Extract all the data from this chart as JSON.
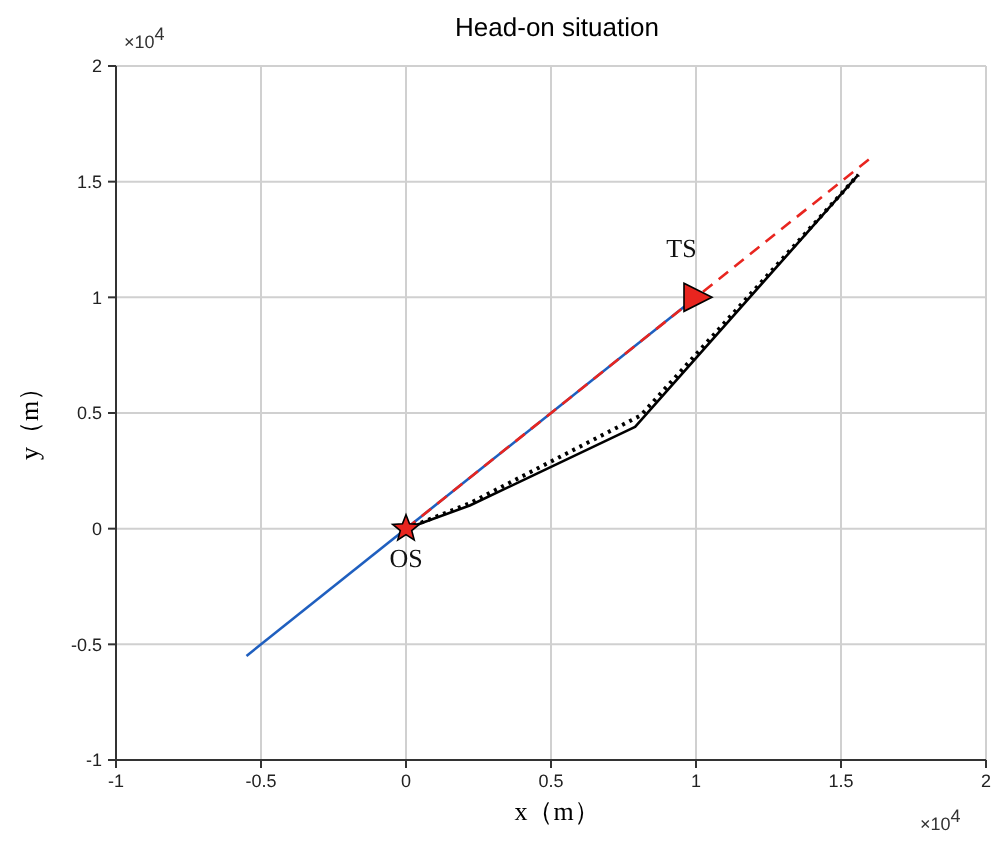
{
  "chart_data": {
    "type": "line",
    "title": "Head-on situation",
    "xlabel": "x（m）",
    "ylabel": "y（m）",
    "xlim": [
      -1,
      2
    ],
    "ylim": [
      -1,
      2
    ],
    "xticks": [
      -1,
      -0.5,
      0,
      0.5,
      1,
      1.5,
      2
    ],
    "yticks": [
      -1,
      -0.5,
      0,
      0.5,
      1,
      1.5,
      2
    ],
    "grid": true,
    "legend": false,
    "series": [
      {
        "color": "#1f5fbf",
        "line_style": "solid",
        "x": [
          -0.55,
          1
        ],
        "values": [
          -0.55,
          1
        ]
      },
      {
        "color": "#e8251f",
        "line_style": "dashed",
        "x": [
          0,
          1.6
        ],
        "values": [
          0,
          1.6
        ]
      },
      {
        "color": "#000000",
        "line_style": "solid",
        "x": [
          0,
          0.22,
          0.79,
          1.56
        ],
        "values": [
          0,
          0.1,
          0.44,
          1.53
        ]
      },
      {
        "color": "#000000",
        "line_style": "dotted",
        "x": [
          0,
          0.22,
          0.81,
          1.56
        ],
        "values": [
          0,
          0.11,
          0.49,
          1.53
        ]
      },
      {
        "type": "scatter",
        "color": "#e8251f",
        "marker": "star",
        "x": [
          0
        ],
        "values": [
          0
        ]
      },
      {
        "type": "scatter",
        "color": "#e8251f",
        "marker": "triangle",
        "x": [
          1
        ],
        "values": [
          1
        ]
      }
    ],
    "annotations": [
      {
        "text": "TS",
        "x": 0.95,
        "y": 1
      },
      {
        "text": "OS",
        "x": 0,
        "y": 0
      },
      "×10$^{4}$",
      "×10$^{4}$"
    ]
  }
}
